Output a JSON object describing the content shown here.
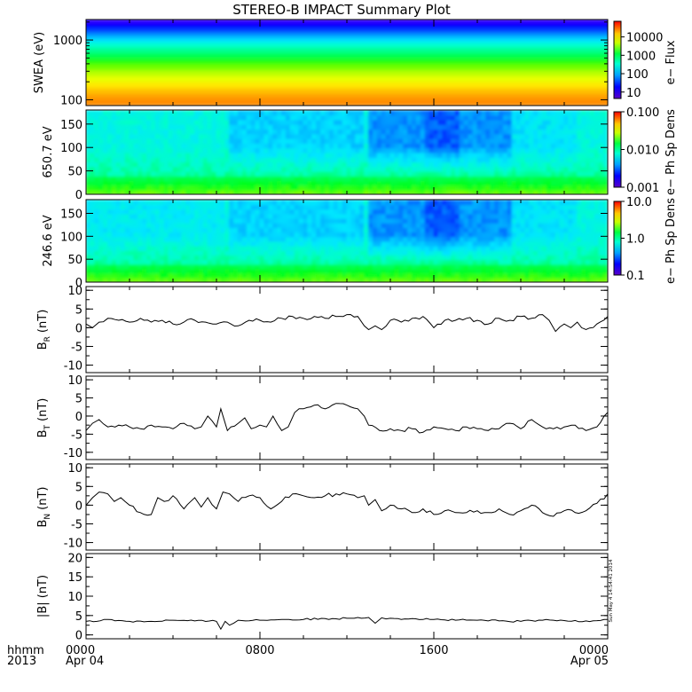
{
  "title": "STEREO-B IMPACT Summary Plot",
  "side_stamp": "Sun May  4 14:54:41 2014",
  "x_axis": {
    "row1_label": "hhmm",
    "row2_label": "2013",
    "ticks": [
      {
        "hours": 0,
        "label": "0000",
        "date": "Apr 04"
      },
      {
        "hours": 8,
        "label": "0800",
        "date": ""
      },
      {
        "hours": 16,
        "label": "1600",
        "date": ""
      },
      {
        "hours": 24,
        "label": "0000",
        "date": "Apr 05"
      }
    ],
    "range_hours": [
      0,
      24
    ]
  },
  "chart_data": [
    {
      "type": "heatmap",
      "name": "swea",
      "ylabel": "SWEA (eV)",
      "yscale": "log",
      "ylim": [
        80,
        2200
      ],
      "yticks": [
        {
          "v": 100,
          "label": "100"
        },
        {
          "v": 1000,
          "label": "1000"
        }
      ],
      "cbar_label": "e−  Flux",
      "cbar_scale": "log",
      "cbar_ticks": [
        "10",
        "100",
        "1000",
        "10000"
      ],
      "description_of_values": "Flux decreases with energy: red/orange near 100 eV, green ~300-500 eV, blue near 2000 eV; nearly constant in time."
    },
    {
      "type": "heatmap",
      "name": "pad650",
      "ylabel": "650.7 eV",
      "ylim": [
        0,
        180
      ],
      "yticks": [
        "0",
        "50",
        "100",
        "150"
      ],
      "cbar_label": "e−  Ph Sp Dens",
      "cbar_scale": "log",
      "cbar_ticks": [
        "0.001",
        "0.010",
        "0.100"
      ]
    },
    {
      "type": "heatmap",
      "name": "pad246",
      "ylabel": "246.6 eV",
      "ylim": [
        0,
        180
      ],
      "yticks": [
        "0",
        "50",
        "100",
        "150"
      ],
      "cbar_label": "e−  Ph Sp Dens",
      "cbar_scale": "log",
      "cbar_ticks": [
        "0.1",
        "1.0",
        "10.0"
      ]
    },
    {
      "type": "line",
      "name": "BR",
      "ylabel": "B",
      "ylabel_sub": "R",
      "ylabel_unit": "(nT)",
      "ylim": [
        -12,
        11
      ],
      "yticks": [
        "-10",
        "-5",
        "0",
        "5",
        "10"
      ],
      "x": [
        0,
        0.3,
        0.6,
        1,
        1.5,
        2,
        2.5,
        3,
        3.5,
        4,
        4.5,
        5,
        5.5,
        6,
        6.5,
        7,
        7.5,
        8,
        8.5,
        9,
        9.5,
        10,
        10.5,
        11,
        11.5,
        12,
        12.5,
        12.8,
        13,
        13.3,
        13.6,
        14,
        14.5,
        15,
        15.5,
        16,
        16.5,
        17,
        17.5,
        18,
        18.5,
        19,
        19.5,
        20,
        20.5,
        21,
        21.3,
        21.6,
        22,
        22.3,
        22.6,
        23,
        23.5,
        24
      ],
      "y": [
        1,
        0,
        1.5,
        2.5,
        2,
        1.5,
        2.5,
        1.5,
        2,
        1,
        1.5,
        2,
        1.5,
        1,
        1.5,
        0.5,
        2,
        2,
        1.5,
        2.5,
        3,
        2.5,
        3,
        2.5,
        3,
        3.5,
        3,
        0.5,
        -0.5,
        0.5,
        -0.5,
        2,
        1.5,
        2.5,
        3,
        0,
        2,
        2,
        2.5,
        2,
        1,
        2.5,
        2,
        3,
        2.5,
        3.5,
        2,
        -1,
        1,
        0,
        1.5,
        -0.5,
        1,
        3
      ]
    },
    {
      "type": "line",
      "name": "BT",
      "ylabel": "B",
      "ylabel_sub": "T",
      "ylabel_unit": "(nT)",
      "ylim": [
        -12,
        11
      ],
      "yticks": [
        "-10",
        "-5",
        "0",
        "5",
        "10"
      ],
      "x": [
        0,
        0.3,
        0.6,
        1,
        1.5,
        2,
        2.5,
        3,
        3.5,
        4,
        4.5,
        5,
        5.3,
        5.6,
        6,
        6.2,
        6.5,
        7,
        7.3,
        7.6,
        8,
        8.3,
        8.6,
        9,
        9.3,
        9.6,
        10,
        10.5,
        11,
        11.5,
        12,
        12.5,
        12.8,
        13,
        13.5,
        14,
        14.5,
        15,
        15.5,
        16,
        16.5,
        17,
        17.5,
        18,
        18.5,
        19,
        19.5,
        20,
        20.5,
        21,
        21.5,
        22,
        22.5,
        23,
        23.5,
        24
      ],
      "y": [
        -4,
        -2,
        -1,
        -3,
        -2.5,
        -3,
        -3.5,
        -2.5,
        -3,
        -3.5,
        -2,
        -3.5,
        -3,
        0,
        -3,
        2,
        -4,
        -2,
        -0.5,
        -3.5,
        -2.5,
        -3,
        0,
        -4,
        -3,
        1,
        2,
        3,
        2,
        3.5,
        3,
        2,
        0,
        -2.5,
        -4,
        -3.5,
        -4,
        -3.5,
        -4.5,
        -3,
        -3.5,
        -4,
        -3,
        -3.5,
        -4,
        -3.5,
        -2,
        -3.5,
        -1,
        -3,
        -3.5,
        -3,
        -2.5,
        -4,
        -3,
        1
      ]
    },
    {
      "type": "line",
      "name": "BN",
      "ylabel": "B",
      "ylabel_sub": "N",
      "ylabel_unit": "(nT)",
      "ylim": [
        -12,
        11
      ],
      "yticks": [
        "-10",
        "-5",
        "0",
        "5",
        "10"
      ],
      "x": [
        0,
        0.3,
        0.6,
        1,
        1.3,
        1.6,
        2,
        2.5,
        3,
        3.3,
        3.6,
        4,
        4.5,
        5,
        5.3,
        5.6,
        6,
        6.3,
        6.6,
        7,
        7.5,
        8,
        8.5,
        9,
        9.5,
        10,
        10.5,
        11,
        11.5,
        12,
        12.5,
        12.8,
        13,
        13.3,
        13.6,
        14,
        14.5,
        15,
        15.5,
        16,
        16.5,
        17,
        17.5,
        18,
        18.5,
        19,
        19.5,
        20,
        20.5,
        21,
        21.5,
        22,
        22.5,
        23,
        23.5,
        24
      ],
      "y": [
        0,
        2,
        3.5,
        3,
        1,
        2,
        0,
        -2,
        -2.5,
        2,
        1,
        2.5,
        -1,
        2,
        -0.5,
        2,
        -1,
        3.5,
        3,
        1,
        2.5,
        2,
        -1,
        1,
        3,
        2.5,
        2,
        2.5,
        3,
        3,
        2,
        2.5,
        0,
        1.5,
        -1.5,
        0,
        -1,
        -2,
        -1,
        -2.5,
        -1.5,
        -2,
        -2,
        -1.5,
        -2,
        -1,
        -2.5,
        -1.5,
        0,
        -2,
        -3,
        -1.5,
        -2,
        -1.5,
        0.5,
        3
      ]
    },
    {
      "type": "line",
      "name": "B",
      "ylabel": "|B| (nT)",
      "ylim": [
        -1,
        21
      ],
      "yticks": [
        "0",
        "5",
        "10",
        "15",
        "20"
      ],
      "x": [
        0,
        0.5,
        1,
        2,
        3,
        4,
        5,
        6,
        6.2,
        6.4,
        6.6,
        7,
        8,
        9,
        10,
        11,
        12,
        12.5,
        13,
        13.3,
        13.6,
        14,
        15,
        16,
        17,
        18,
        19,
        20,
        21,
        22,
        23,
        24
      ],
      "y": [
        3.5,
        3.5,
        4,
        3.5,
        3.5,
        3.8,
        3.6,
        3.5,
        1.5,
        3.5,
        2.5,
        3.8,
        3.8,
        4,
        4,
        4.2,
        4.3,
        4.5,
        4.5,
        3,
        4.4,
        4.3,
        4.2,
        4,
        3.8,
        3.8,
        3.6,
        3.5,
        3.8,
        3.7,
        3.6,
        4
      ]
    }
  ]
}
